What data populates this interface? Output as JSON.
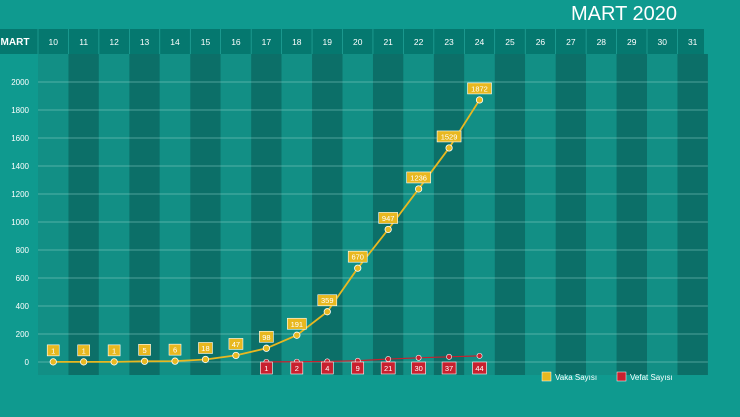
{
  "chart_data": {
    "type": "line",
    "title": "MART 2020",
    "axis_label": "MART",
    "categories": [
      "10",
      "11",
      "12",
      "13",
      "14",
      "15",
      "16",
      "17",
      "18",
      "19",
      "20",
      "21",
      "22",
      "23",
      "24",
      "25",
      "26",
      "27",
      "28",
      "29",
      "30",
      "31"
    ],
    "series": [
      {
        "name": "Vaka Sayısı",
        "color": "#e8b820",
        "values": [
          1,
          1,
          1,
          5,
          6,
          18,
          47,
          98,
          191,
          359,
          670,
          947,
          1236,
          1529,
          1872,
          null,
          null,
          null,
          null,
          null,
          null,
          null
        ]
      },
      {
        "name": "Vefat Sayısı",
        "color": "#c8202e",
        "values": [
          null,
          null,
          null,
          null,
          null,
          null,
          null,
          1,
          2,
          4,
          9,
          21,
          30,
          37,
          44,
          null,
          null,
          null,
          null,
          null,
          null,
          null
        ]
      }
    ],
    "yticks": [
      0,
      200,
      400,
      600,
      800,
      1000,
      1200,
      1400,
      1600,
      1800,
      2000
    ],
    "ylim": [
      0,
      2200
    ],
    "grid": true,
    "legend_position": "bottom-right"
  }
}
